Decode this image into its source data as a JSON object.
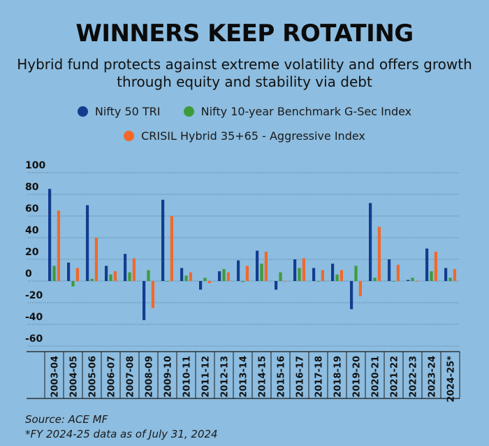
{
  "colors": {
    "background": "#8dbde0",
    "nifty50": "#123d8e",
    "gsec": "#3e9b3a",
    "crisil": "#f2682a"
  },
  "chart_data": {
    "type": "bar",
    "title": "WINNERS KEEP ROTATING",
    "subtitle": "Hybrid fund protects against extreme volatility and offers growth through equity and stability via debt",
    "categories": [
      "2003-04",
      "2004-05",
      "2005-06",
      "2006-07",
      "2007-08",
      "2008-09",
      "2009-10",
      "2010-11",
      "2011-12",
      "2012-13",
      "2013-14",
      "2014-15",
      "2015-16",
      "2016-17",
      "2017-18",
      "2018-19",
      "2019-20",
      "2020-21",
      "2021-22",
      "2022-23",
      "2023-24",
      "2024-25*"
    ],
    "series": [
      {
        "name": "Nifty 50 TRI",
        "color": "#123d8e",
        "values": [
          85,
          17,
          70,
          14,
          25,
          -36,
          75,
          12,
          -8,
          9,
          19,
          28,
          -8,
          20,
          12,
          16,
          -26,
          72,
          20,
          1,
          30,
          12
        ]
      },
      {
        "name": "Nifty 10-year Benchmark G-Sec Index",
        "color": "#3e9b3a",
        "values": [
          14,
          -5,
          2,
          6,
          8,
          10,
          0,
          5,
          3,
          11,
          -1,
          16,
          8,
          12,
          0,
          6,
          14,
          3,
          0,
          3,
          9,
          3
        ]
      },
      {
        "name": "CRISIL Hybrid 35+65 - Aggressive Index",
        "color": "#f2682a",
        "values": [
          65,
          12,
          40,
          9,
          21,
          -25,
          60,
          8,
          -2,
          8,
          14,
          27,
          0,
          21,
          10,
          10,
          -14,
          50,
          15,
          0,
          27,
          11
        ]
      }
    ],
    "y_ticks": [
      "100",
      "80",
      "60",
      "40",
      "20",
      "0",
      "-20",
      "-40",
      "-60"
    ],
    "ylim": [
      -65,
      100
    ],
    "grid": "horizontal dashed",
    "legend": "top"
  },
  "legend": {
    "item1": "Nifty 50 TRI",
    "item2": "Nifty 10-year Benchmark G-Sec Index",
    "item3": "CRISIL Hybrid 35+65 - Aggressive Index"
  },
  "footer": {
    "source": "Source: ACE MF",
    "note": "*FY 2024-25 data as of July 31, 2024"
  }
}
